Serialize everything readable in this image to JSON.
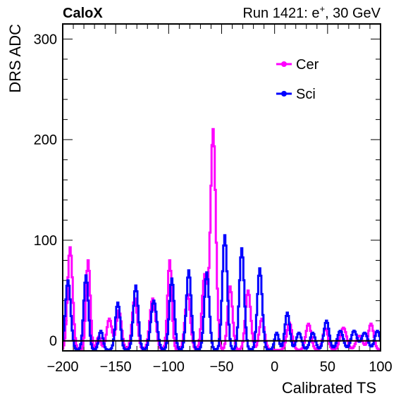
{
  "header": {
    "experiment": "CaloX",
    "run_prefix": "Run 1421: e",
    "run_sup": "+",
    "run_suffix": ", 30 GeV"
  },
  "chart_data": {
    "type": "line",
    "xlabel": "Calibrated TS",
    "ylabel": "DRS ADC",
    "xlim": [
      -200,
      100
    ],
    "ylim": [
      -10,
      315
    ],
    "x_ticks": [
      -200,
      -150,
      -100,
      -50,
      0,
      50,
      100
    ],
    "x_tick_labels": [
      "−200",
      "−150",
      "−100",
      "−50",
      "0",
      "50",
      "100"
    ],
    "y_ticks": [
      0,
      100,
      200,
      300
    ],
    "y_tick_labels": [
      "0",
      "100",
      "200",
      "300"
    ],
    "baseline": 0,
    "grid": false,
    "legend_position": "top-right",
    "series": [
      {
        "name": "Cer",
        "color": "#ff00ff",
        "peaks": [
          {
            "x": -193,
            "y": 93,
            "w": 2.4
          },
          {
            "x": -176,
            "y": 80,
            "w": 2.0
          },
          {
            "x": -166,
            "y": 4,
            "w": 2.0
          },
          {
            "x": -156,
            "y": 22,
            "w": 2.5
          },
          {
            "x": -147,
            "y": 30,
            "w": 2.5
          },
          {
            "x": -132,
            "y": 42,
            "w": 2.5
          },
          {
            "x": -115,
            "y": 42,
            "w": 2.8
          },
          {
            "x": -99,
            "y": 80,
            "w": 2.0
          },
          {
            "x": -82,
            "y": 46,
            "w": 2.5
          },
          {
            "x": -66,
            "y": 65,
            "w": 2.5
          },
          {
            "x": -58,
            "y": 210,
            "w": 2.5
          },
          {
            "x": -42,
            "y": 54,
            "w": 2.3
          },
          {
            "x": -25,
            "y": 50,
            "w": 2.5
          },
          {
            "x": -12,
            "y": 22,
            "w": 2.5
          },
          {
            "x": 14,
            "y": 18,
            "w": 2.5
          },
          {
            "x": 32,
            "y": 17,
            "w": 2.5
          },
          {
            "x": 48,
            "y": 12,
            "w": 2.5
          },
          {
            "x": 65,
            "y": 13,
            "w": 3.0
          },
          {
            "x": 80,
            "y": 5,
            "w": 3.0
          },
          {
            "x": 91,
            "y": 17,
            "w": 2.5
          }
        ]
      },
      {
        "name": "Sci",
        "color": "#0000ff",
        "peaks": [
          {
            "x": -195,
            "y": 60,
            "w": 2.5
          },
          {
            "x": -178,
            "y": 65,
            "w": 2.2
          },
          {
            "x": -164,
            "y": 10,
            "w": 2.0
          },
          {
            "x": -148,
            "y": 38,
            "w": 2.3
          },
          {
            "x": -131,
            "y": 55,
            "w": 2.3
          },
          {
            "x": -114,
            "y": 40,
            "w": 2.8
          },
          {
            "x": -97,
            "y": 62,
            "w": 2.3
          },
          {
            "x": -81,
            "y": 70,
            "w": 2.3
          },
          {
            "x": -64,
            "y": 68,
            "w": 2.3
          },
          {
            "x": -47,
            "y": 105,
            "w": 2.3
          },
          {
            "x": -31,
            "y": 92,
            "w": 2.3
          },
          {
            "x": -14,
            "y": 72,
            "w": 2.3
          },
          {
            "x": 2,
            "y": 8,
            "w": 2.0
          },
          {
            "x": 12,
            "y": 28,
            "w": 2.3
          },
          {
            "x": 23,
            "y": 8,
            "w": 2.5
          },
          {
            "x": 36,
            "y": 8,
            "w": 2.5
          },
          {
            "x": 49,
            "y": 20,
            "w": 2.5
          },
          {
            "x": 62,
            "y": 10,
            "w": 2.8
          },
          {
            "x": 75,
            "y": 10,
            "w": 2.8
          },
          {
            "x": 85,
            "y": 8,
            "w": 3.0
          },
          {
            "x": 97,
            "y": 10,
            "w": 2.5
          }
        ]
      }
    ]
  }
}
